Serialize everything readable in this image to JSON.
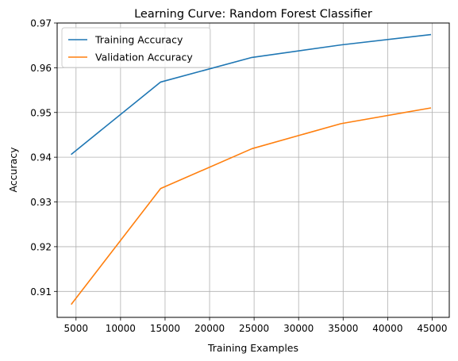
{
  "chart_data": {
    "type": "line",
    "title": "Learning Curve: Random Forest Classifier",
    "xlabel": "Training Examples",
    "ylabel": "Accuracy",
    "xlim": [
      2880,
      46920
    ],
    "ylim": [
      0.9042,
      0.97
    ],
    "xticks": [
      5000,
      10000,
      15000,
      20000,
      25000,
      30000,
      35000,
      40000,
      45000
    ],
    "yticks": [
      0.91,
      0.92,
      0.93,
      0.94,
      0.95,
      0.96,
      0.97
    ],
    "grid": true,
    "legend_position": "upper-left",
    "x": [
      4500,
      14500,
      24750,
      34750,
      44800
    ],
    "series": [
      {
        "name": "Training Accuracy",
        "color": "#1f77b4",
        "values": [
          0.9407,
          0.9568,
          0.9623,
          0.9651,
          0.9674
        ]
      },
      {
        "name": "Validation Accuracy",
        "color": "#ff7f0e",
        "values": [
          0.9072,
          0.933,
          0.9419,
          0.9475,
          0.951
        ]
      }
    ]
  }
}
